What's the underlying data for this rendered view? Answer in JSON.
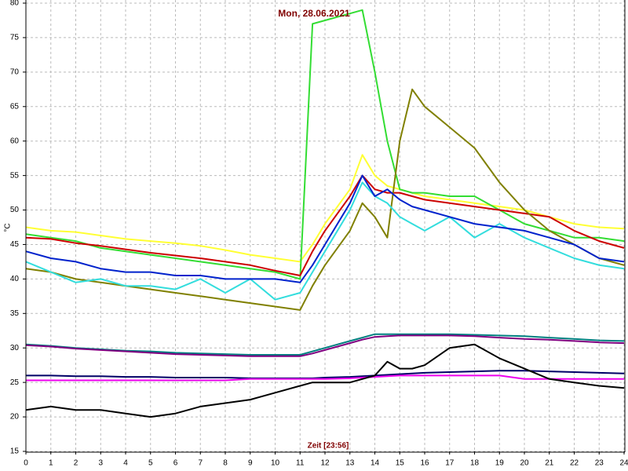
{
  "chart_data": {
    "type": "line",
    "title": "Mon, 28.06.2021",
    "xlabel": "Zeit [23:56]",
    "ylabel": "°C",
    "grid": true,
    "xlim": [
      0,
      24
    ],
    "xticks": [
      0,
      1,
      2,
      3,
      4,
      5,
      6,
      7,
      8,
      9,
      10,
      11,
      12,
      13,
      14,
      15,
      16,
      17,
      18,
      19,
      20,
      21,
      22,
      23,
      24
    ],
    "ylim": [
      15,
      80
    ],
    "yticks": [
      15,
      20,
      25,
      30,
      35,
      40,
      45,
      50,
      55,
      60,
      65,
      70,
      75,
      80
    ],
    "x": [
      0,
      1,
      2,
      3,
      4,
      5,
      6,
      7,
      8,
      9,
      10,
      11,
      11.5,
      12,
      13,
      13.5,
      14,
      14.5,
      15,
      15.5,
      16,
      17,
      18,
      19,
      20,
      21,
      22,
      23,
      24
    ],
    "series": [
      {
        "color": "#ffff33",
        "values": [
          47.5,
          47,
          46.8,
          46.3,
          45.8,
          45.5,
          45.2,
          44.8,
          44.2,
          43.5,
          43,
          42.5,
          45,
          48,
          53,
          58,
          55,
          53.5,
          53,
          52.5,
          52,
          51.5,
          51,
          50.5,
          50,
          49,
          48,
          47.5,
          47.3
        ]
      },
      {
        "color": "#33dd33",
        "values": [
          46.5,
          46,
          45.5,
          44.5,
          44,
          43.5,
          43,
          42.5,
          42,
          41.5,
          41,
          40,
          77,
          77.5,
          78.5,
          79,
          70,
          60,
          53,
          52.5,
          52.5,
          52,
          52,
          50,
          48,
          47,
          46,
          46,
          45.5
        ]
      },
      {
        "color": "#cc0000",
        "values": [
          46,
          45.8,
          45.2,
          44.8,
          44.3,
          43.8,
          43.4,
          43,
          42.5,
          42,
          41.2,
          40.5,
          44,
          47,
          52,
          55,
          53,
          52.5,
          52.5,
          52,
          51.5,
          51,
          50.5,
          50,
          49.5,
          49,
          47,
          45.5,
          44.5
        ]
      },
      {
        "color": "#808000",
        "values": [
          41.5,
          41,
          40,
          39.5,
          39,
          38.5,
          38,
          37.5,
          37,
          36.5,
          36,
          35.5,
          39,
          42,
          47,
          51,
          49,
          46,
          60,
          67.5,
          65,
          62,
          59,
          54,
          50,
          47,
          45,
          43,
          42
        ]
      },
      {
        "color": "#33dddd",
        "values": [
          42.5,
          41,
          39.5,
          40,
          39,
          39,
          38.5,
          40,
          38,
          40,
          37,
          38,
          41,
          44,
          50,
          54,
          52,
          51,
          49,
          48,
          47,
          49,
          46,
          48,
          46,
          44.5,
          43,
          42,
          41.5
        ]
      },
      {
        "color": "#0022cc",
        "values": [
          44,
          43,
          42.5,
          41.5,
          41,
          41,
          40.5,
          40.5,
          40,
          40,
          40,
          39.5,
          42,
          45,
          51,
          55,
          52,
          53,
          51.5,
          50.5,
          50,
          49,
          48,
          47.5,
          47,
          46,
          45,
          43,
          42.5
        ]
      },
      {
        "color": "#008080",
        "values": [
          30.5,
          30.3,
          30,
          29.8,
          29.6,
          29.5,
          29.3,
          29.2,
          29.1,
          29,
          29,
          29,
          29.5,
          30,
          31,
          31.5,
          32,
          32,
          32,
          32,
          32,
          32,
          31.9,
          31.8,
          31.7,
          31.5,
          31.3,
          31.1,
          31
        ]
      },
      {
        "color": "#800080",
        "values": [
          30.4,
          30.2,
          29.9,
          29.7,
          29.5,
          29.3,
          29.1,
          29,
          28.9,
          28.8,
          28.8,
          28.8,
          29.2,
          29.7,
          30.7,
          31.2,
          31.6,
          31.7,
          31.8,
          31.8,
          31.8,
          31.8,
          31.7,
          31.5,
          31.3,
          31.2,
          31,
          30.8,
          30.7
        ]
      },
      {
        "color": "#000066",
        "values": [
          26,
          26,
          25.9,
          25.9,
          25.8,
          25.8,
          25.7,
          25.7,
          25.7,
          25.6,
          25.6,
          25.6,
          25.6,
          25.7,
          25.8,
          25.9,
          26,
          26.1,
          26.2,
          26.3,
          26.4,
          26.5,
          26.6,
          26.7,
          26.7,
          26.6,
          26.5,
          26.4,
          26.3
        ]
      },
      {
        "color": "#ee00ee",
        "values": [
          25.3,
          25.3,
          25.3,
          25.3,
          25.3,
          25.3,
          25.3,
          25.3,
          25.3,
          25.5,
          25.5,
          25.5,
          25.5,
          25.5,
          25.6,
          25.7,
          25.8,
          25.9,
          26,
          26,
          26,
          26,
          26,
          26,
          25.5,
          25.5,
          25.5,
          25.5,
          25.5
        ]
      },
      {
        "color": "#000000",
        "values": [
          21,
          21.5,
          21,
          21,
          20.5,
          20,
          20.5,
          21.5,
          22,
          22.5,
          23.5,
          24.5,
          25,
          25,
          25,
          25.5,
          26,
          28,
          27,
          27,
          27.5,
          30,
          30.5,
          28.5,
          27,
          25.5,
          25,
          24.5,
          24.2
        ]
      }
    ]
  }
}
